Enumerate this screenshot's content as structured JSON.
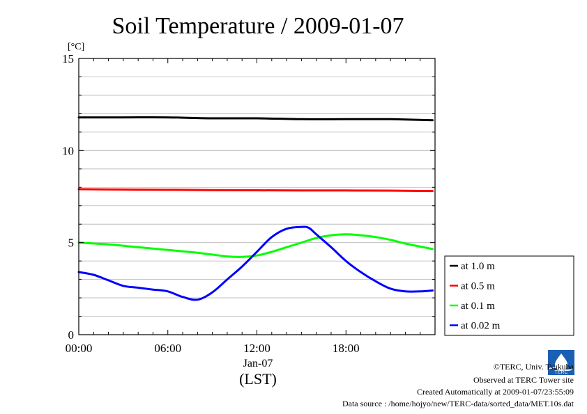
{
  "chart_data": {
    "type": "line",
    "title": "Soil Temperature / 2009-01-07",
    "ylabel": "[°C]",
    "xlabel": "(LST)",
    "x_date_label": "Jan-07",
    "x_ticks": [
      "00:00",
      "06:00",
      "12:00",
      "18:00"
    ],
    "y_ticks": [
      "0",
      "5",
      "10",
      "15"
    ],
    "ylim": [
      0,
      15
    ],
    "xlim": [
      "00:00",
      "23:50"
    ],
    "grid": true,
    "legend_position": "right",
    "series": [
      {
        "name": "at 1.0 m",
        "color": "#000000",
        "x": [
          "00:00",
          "03:00",
          "06:00",
          "09:00",
          "12:00",
          "15:00",
          "18:00",
          "21:00",
          "23:50"
        ],
        "y": [
          11.8,
          11.8,
          11.8,
          11.75,
          11.75,
          11.7,
          11.7,
          11.7,
          11.65
        ]
      },
      {
        "name": "at 0.5 m",
        "color": "#ff0000",
        "x": [
          "00:00",
          "03:00",
          "06:00",
          "09:00",
          "12:00",
          "15:00",
          "18:00",
          "21:00",
          "23:50"
        ],
        "y": [
          7.9,
          7.88,
          7.87,
          7.85,
          7.84,
          7.83,
          7.83,
          7.82,
          7.8
        ]
      },
      {
        "name": "at 0.1 m",
        "color": "#00ff00",
        "x": [
          "00:00",
          "02:00",
          "04:00",
          "06:00",
          "08:00",
          "10:00",
          "11:00",
          "12:00",
          "13:00",
          "14:00",
          "15:00",
          "16:00",
          "17:00",
          "18:00",
          "19:00",
          "20:00",
          "21:00",
          "22:00",
          "23:50"
        ],
        "y": [
          5.0,
          4.9,
          4.75,
          4.6,
          4.45,
          4.25,
          4.22,
          4.3,
          4.5,
          4.75,
          5.0,
          5.25,
          5.4,
          5.45,
          5.4,
          5.3,
          5.15,
          4.95,
          4.65
        ]
      },
      {
        "name": "at 0.02 m",
        "color": "#0000ff",
        "x": [
          "00:00",
          "01:00",
          "02:00",
          "03:00",
          "04:00",
          "05:00",
          "06:00",
          "07:00",
          "08:00",
          "09:00",
          "10:00",
          "11:00",
          "12:00",
          "13:00",
          "14:00",
          "15:00",
          "15:30",
          "16:00",
          "17:00",
          "18:00",
          "19:00",
          "20:00",
          "21:00",
          "22:00",
          "23:00",
          "23:50"
        ],
        "y": [
          3.4,
          3.25,
          2.95,
          2.65,
          2.55,
          2.45,
          2.35,
          2.05,
          1.9,
          2.3,
          3.0,
          3.7,
          4.5,
          5.3,
          5.75,
          5.85,
          5.8,
          5.45,
          4.75,
          4.0,
          3.4,
          2.9,
          2.5,
          2.35,
          2.35,
          2.4
        ]
      }
    ]
  },
  "footer": {
    "copyright": "©TERC, Univ. Tsukuba",
    "observed": "Observed at TERC Tower site",
    "created": "Created Automatically at 2009-01-07/23:55:09",
    "source": "Data source : /home/hojyo/new/TERC-data/sorted_data/MET.10s.dat",
    "logo_text": "TERC"
  }
}
